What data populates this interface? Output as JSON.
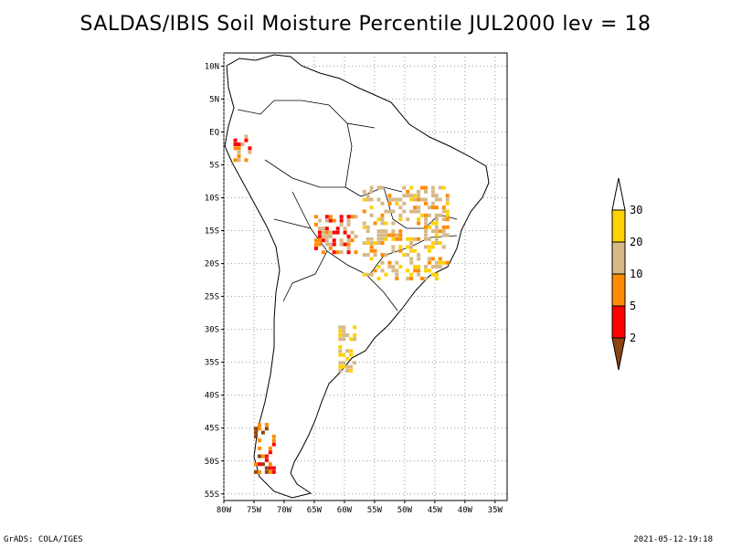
{
  "title": "SALDAS/IBIS Soil Moisture Percentile JUL2000 lev = 18",
  "footer": {
    "left": "GrADS: COLA/IGES",
    "right": "2021-05-12-19:18"
  },
  "map": {
    "region": "South America",
    "lat_labels": [
      "10N",
      "5N",
      "EQ",
      "5S",
      "10S",
      "15S",
      "20S",
      "25S",
      "30S",
      "35S",
      "40S",
      "45S",
      "50S",
      "55S"
    ],
    "lon_labels": [
      "80W",
      "75W",
      "70W",
      "65W",
      "60W",
      "55W",
      "50W",
      "45W",
      "40W",
      "35W"
    ],
    "grid": true,
    "colors": {
      "coast": "#000000",
      "grid": "#9a9a9a"
    }
  },
  "legend": {
    "position": "right",
    "labels": [
      "30",
      "20",
      "10",
      "5",
      "2"
    ],
    "bins": [
      {
        "color": "#ffffff",
        "label": ">30"
      },
      {
        "color": "#ffd200",
        "label": "20-30"
      },
      {
        "color": "#d7b888",
        "label": "10-20"
      },
      {
        "color": "#ff8c00",
        "label": "5-10"
      },
      {
        "color": "#ff0000",
        "label": "2-5"
      },
      {
        "color": "#8b4513",
        "label": "<2"
      }
    ]
  },
  "chart_data": {
    "type": "heatmap",
    "title": "SALDAS/IBIS Soil Moisture Percentile JUL2000 lev = 18",
    "xlabel": "",
    "ylabel": "",
    "xlim": [
      -80,
      -33
    ],
    "ylim": [
      -56,
      12
    ],
    "grid": true,
    "legend_placement": "right",
    "colorbar_levels": [
      2,
      5,
      10,
      20,
      30
    ],
    "regions": [
      {
        "name_hint": "central Brazil",
        "lon": [
          -57,
          -43
        ],
        "lat": [
          -22,
          -8
        ],
        "percentile_class": "10-30"
      },
      {
        "name_hint": "Bolivia",
        "lon": [
          -65,
          -58
        ],
        "lat": [
          -18,
          -12
        ],
        "percentile_class": "5-20"
      },
      {
        "name_hint": "Ecuador",
        "lon": [
          -79,
          -76
        ],
        "lat": [
          -4,
          0
        ],
        "percentile_class": "5-20"
      },
      {
        "name_hint": "NE Argentina",
        "lon": [
          -61,
          -58
        ],
        "lat": [
          -36,
          -29
        ],
        "percentile_class": "20-30"
      },
      {
        "name_hint": "Chile south",
        "lon": [
          -75,
          -72
        ],
        "lat": [
          -52,
          -44
        ],
        "percentile_class": "2-10"
      }
    ]
  }
}
